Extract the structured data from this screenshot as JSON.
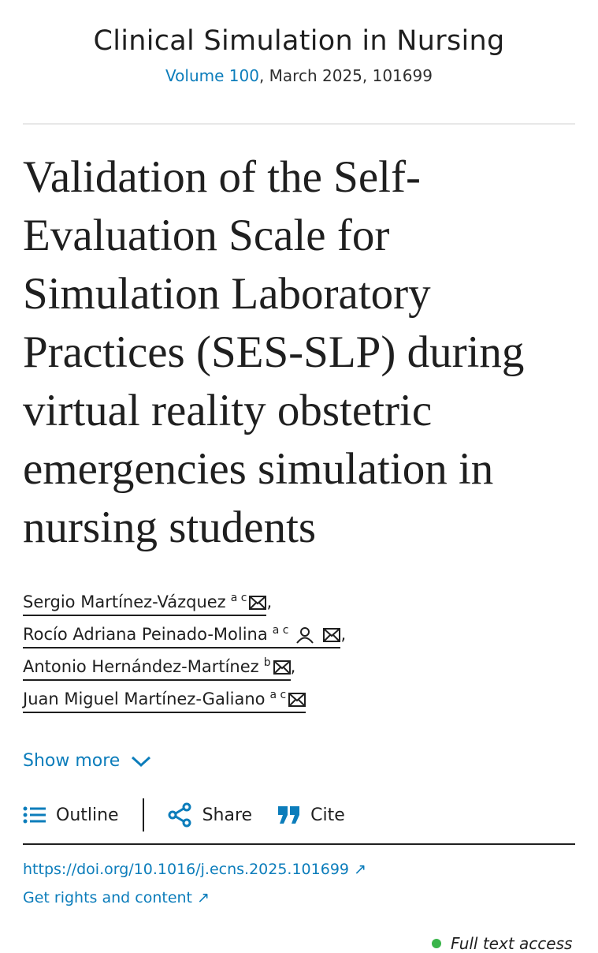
{
  "journal": {
    "name": "Clinical Simulation in Nursing",
    "volume_link": "Volume 100",
    "issue_rest": ", March 2025, 101699"
  },
  "article": {
    "title": "Validation of the Self-Evaluation Scale for Simulation Laboratory Practices (SES-SLP) during virtual reality obstetric emergencies simulation in nursing students"
  },
  "authors": [
    {
      "name": "Sergio Martínez-Vázquez",
      "aff": "a c",
      "sep": ","
    },
    {
      "name": "Rocío Adriana Peinado-Molina",
      "aff": "a c",
      "sep": ","
    },
    {
      "name": "Antonio Hernández-Martínez",
      "aff": "b",
      "sep": ","
    },
    {
      "name": "Juan Miguel Martínez-Galiano",
      "aff": "a c",
      "sep": ""
    }
  ],
  "show_more": "Show more",
  "toolbar": {
    "outline": "Outline",
    "share": "Share",
    "cite": "Cite"
  },
  "links": {
    "doi": "https://doi.org/10.1016/j.ecns.2025.101699 ↗",
    "rights": "Get rights and content ↗"
  },
  "access": "Full text access",
  "colors": {
    "link": "#0c7dbb",
    "access_dot": "#3ab54a"
  }
}
